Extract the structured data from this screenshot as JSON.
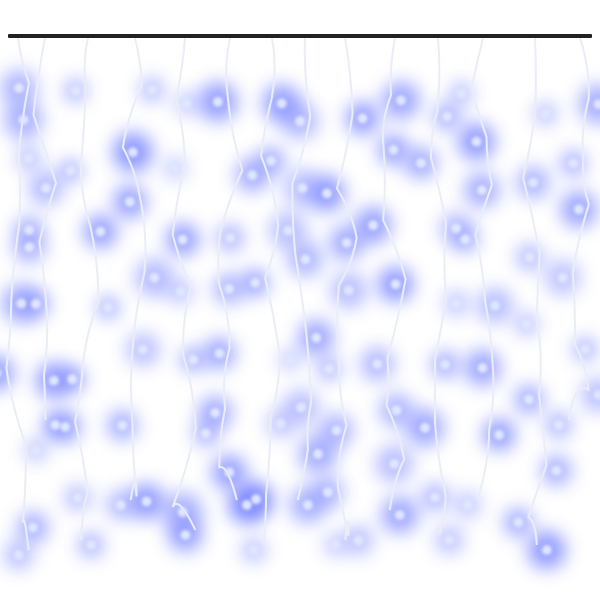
{
  "colors": {
    "background": "#ffffff",
    "rail": "#222222",
    "wire": "#e9eef5",
    "bulb_core": "#dfe6ff",
    "bulb_glow": "#6f7dff"
  }
}
